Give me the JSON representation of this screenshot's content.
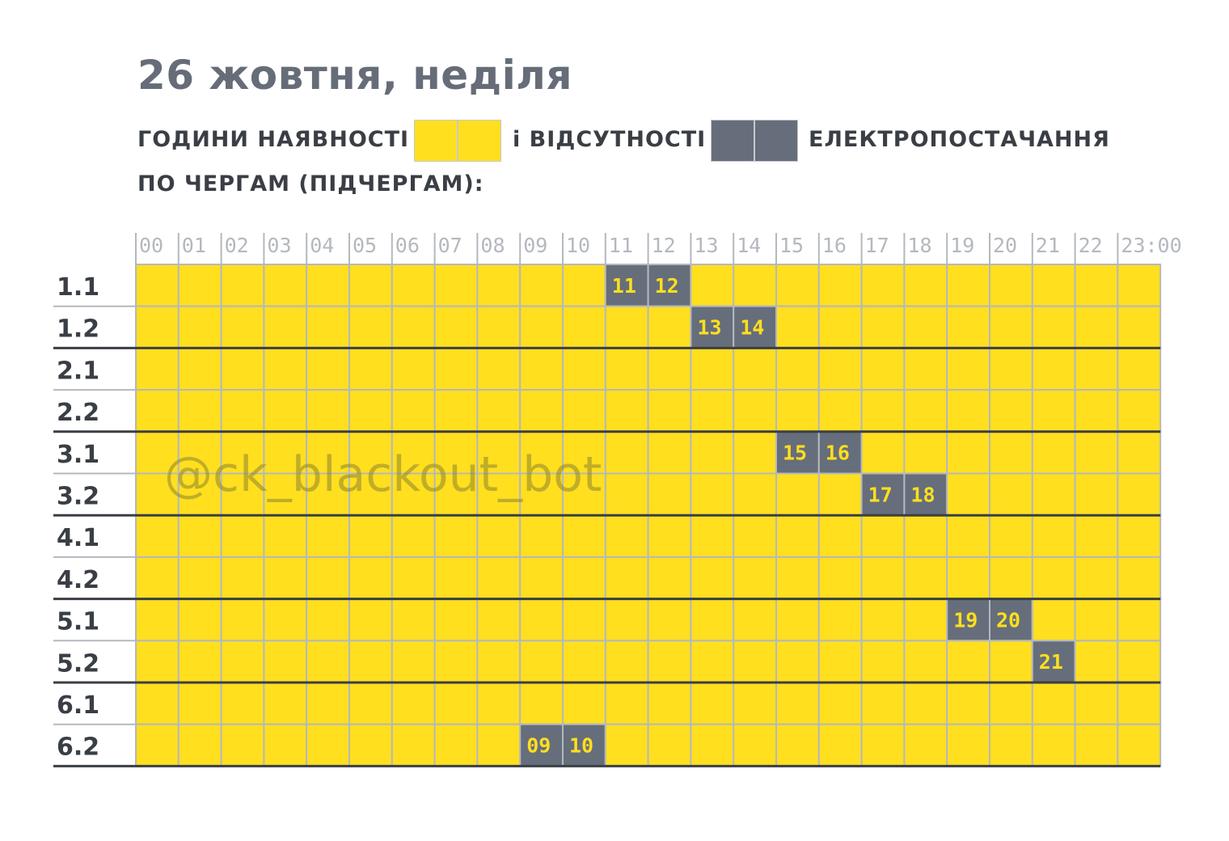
{
  "title": "26 жовтня, неділя",
  "legend": {
    "part1": "ГОДИНИ НАЯВНОСТІ",
    "part2": "і ВІДСУТНОСТІ",
    "part3": "ЕЛЕКТРОПОСТАЧАННЯ",
    "line2": "ПО ЧЕРГАМ (ПІДЧЕРГАМ):"
  },
  "watermark": "@ck_blackout_bot",
  "colors": {
    "on": "#ffdf1e",
    "off": "#666e7b",
    "title": "#666d78",
    "text": "#3a3e45",
    "grid": "#b4b8bf",
    "separator": "#3a3e45",
    "offText": "#ffdf1e"
  },
  "chart_data": {
    "type": "heatmap",
    "x": [
      "00",
      "01",
      "02",
      "03",
      "04",
      "05",
      "06",
      "07",
      "08",
      "09",
      "10",
      "11",
      "12",
      "13",
      "14",
      "15",
      "16",
      "17",
      "18",
      "19",
      "20",
      "21",
      "22",
      "23"
    ],
    "x_end_label": "23:00",
    "rows": [
      "1.1",
      "1.2",
      "2.1",
      "2.2",
      "3.1",
      "3.2",
      "4.1",
      "4.2",
      "5.1",
      "5.2",
      "6.1",
      "6.2"
    ],
    "values_description": "1 = power on (yellow), 0 = outage (grey)",
    "outages": {
      "1.1": [
        11,
        12
      ],
      "1.2": [
        13,
        14
      ],
      "2.1": [],
      "2.2": [],
      "3.1": [
        15,
        16
      ],
      "3.2": [
        17,
        18
      ],
      "4.1": [],
      "4.2": [],
      "5.1": [
        19,
        20
      ],
      "5.2": [
        21
      ],
      "6.1": [],
      "6.2": [
        9,
        10
      ]
    },
    "outage_labels": {
      "1.1": [
        "11",
        "12"
      ],
      "1.2": [
        "13",
        "14"
      ],
      "3.1": [
        "15",
        "16"
      ],
      "3.2": [
        "17",
        "18"
      ],
      "5.1": [
        "19",
        "20"
      ],
      "5.2": [
        "21"
      ],
      "6.2": [
        "09",
        "10"
      ]
    }
  }
}
